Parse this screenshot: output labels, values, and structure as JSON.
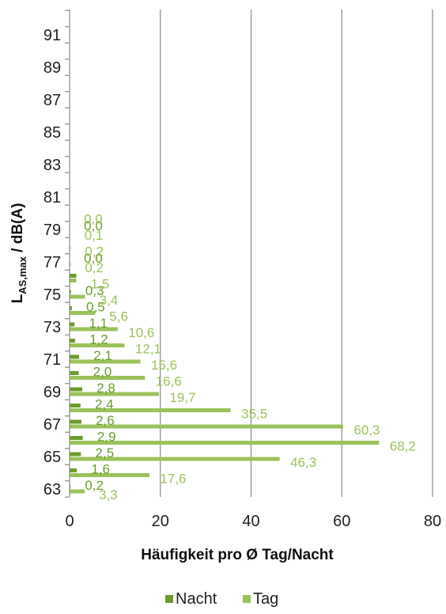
{
  "chart_data": {
    "type": "bar",
    "orientation": "horizontal",
    "categories": [
      "63",
      "64",
      "65",
      "66",
      "67",
      "68",
      "69",
      "70",
      "71",
      "72",
      "73",
      "74",
      "75",
      "76",
      "77",
      "78",
      "79",
      "80",
      "81",
      "82",
      "83",
      "84",
      "85",
      "86",
      "87",
      "88",
      "89",
      "90",
      "91",
      "92"
    ],
    "y_tick_labels": [
      "63",
      "65",
      "67",
      "69",
      "71",
      "73",
      "75",
      "77",
      "79",
      "81",
      "83",
      "85",
      "87",
      "89",
      "91"
    ],
    "series": [
      {
        "name": "Nacht",
        "color": "#6a9d2a",
        "values": [
          0.2,
          1.6,
          2.5,
          2.9,
          2.6,
          2.4,
          2.8,
          2.0,
          2.1,
          1.2,
          1.1,
          0.5,
          0.3,
          1.5,
          0.0,
          null,
          0.0,
          null,
          null,
          null,
          null,
          null,
          null,
          null,
          null,
          null,
          null,
          null,
          null,
          null
        ],
        "labels": [
          "0,2",
          "1,6",
          "2,5",
          "2,9",
          "2,6",
          "2,4",
          "2,8",
          "2,0",
          "2,1",
          "1,2",
          "1,1",
          "0,5",
          "0,3",
          "",
          "0,0",
          "",
          "0,0",
          "",
          "",
          "",
          "",
          "",
          "",
          "",
          "",
          "",
          "",
          "",
          "",
          ""
        ]
      },
      {
        "name": "Tag",
        "color": "#9cc25c",
        "values": [
          3.3,
          17.6,
          46.3,
          68.2,
          60.3,
          35.5,
          19.7,
          16.6,
          15.6,
          12.1,
          10.6,
          5.6,
          3.4,
          1.5,
          0.2,
          0.2,
          0.1,
          0.0,
          null,
          null,
          null,
          null,
          null,
          null,
          null,
          null,
          null,
          null,
          null,
          null
        ],
        "labels": [
          "3,3",
          "17,6",
          "46,3",
          "68,2",
          "60,3",
          "35,5",
          "19,7",
          "16,6",
          "15,6",
          "12,1",
          "10,6",
          "5,6",
          "3,4",
          "1,5",
          "0,2",
          "0,2",
          "0,1",
          "0,0",
          "",
          "",
          "",
          "",
          "",
          "",
          "",
          "",
          "",
          "",
          "",
          ""
        ]
      }
    ],
    "xlim": [
      0,
      80
    ],
    "x_ticks": [
      "0",
      "20",
      "40",
      "60",
      "80"
    ],
    "x_tick_values": [
      0,
      20,
      40,
      60,
      80
    ],
    "xlabel": "Häufigkeit pro Ø Tag/Nacht",
    "ylabel_main": "L",
    "ylabel_sub": "AS,max",
    "ylabel_rest": " / dB(A)",
    "grid": "vertical",
    "legend_position": "bottom"
  },
  "legend": {
    "nacht": "Nacht",
    "tag": "Tag",
    "nacht_color": "#6a9d2a",
    "tag_color": "#9cc25c"
  }
}
